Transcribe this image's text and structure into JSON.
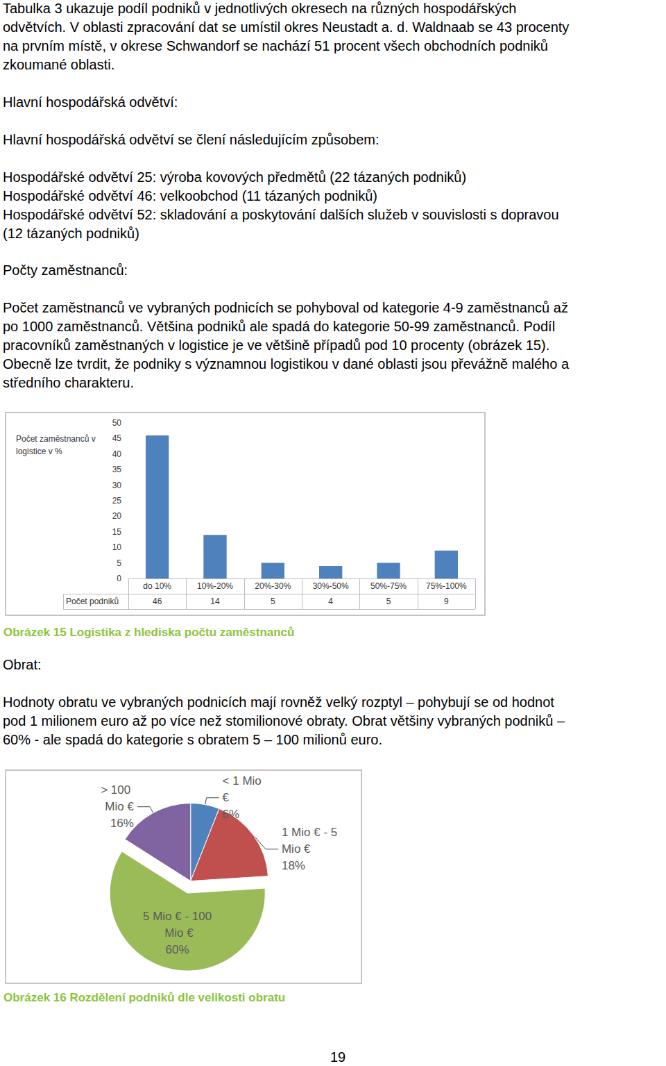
{
  "text_blocks": [
    {
      "lines": [
        "Tabulka 3 ukazuje podíl podniků v jednotlivých okresech na různých hospodářských",
        "odvětvích. V oblasti zpracování dat se umístil okres Neustadt a. d. Waldnaab se 43 procenty",
        "na prvním místě, v okrese Schwandorf se nachází 51 procent všech obchodních podniků",
        "zkoumané oblasti."
      ]
    },
    {
      "lines": [
        "Hlavní hospodářská odvětví:"
      ]
    },
    {
      "lines": [
        "Hlavní hospodářská odvětví se člení následujícím způsobem:"
      ]
    },
    {
      "lines": [
        "Hospodářské odvětví 25: výroba kovových předmětů (22 tázaných podniků)"
      ]
    },
    {
      "lines": [
        "Hospodářské odvětví 46: velkoobchod (11 tázaných podniků)"
      ]
    },
    {
      "lines": [
        "Hospodářské odvětví 52: skladování a poskytování dalších služeb v souvislosti s dopravou",
        "(12 tázaných podniků)"
      ]
    },
    {
      "lines": [
        "Počty zaměstnanců:"
      ]
    },
    {
      "lines": [
        "Počet zaměstnanců ve vybraných podnicích se pohyboval od kategorie 4-9 zaměstnanců až",
        "po 1000 zaměstnanců. Většina podniků ale spadá do kategorie 50-99 zaměstnanců. Podíl",
        "pracovníků zaměstnaných v logistice je ve většině případů pod 10 procenty (obrázek 15).",
        "Obecně lze tvrdit, že podniky s významnou logistikou v dané oblasti jsou převážně malého a",
        "středního charakteru."
      ]
    },
    {
      "lines": [
        "Obrat:"
      ]
    },
    {
      "lines": [
        "Hodnoty obratu ve vybraných podnicích mají rovněž velký rozptyl – pohybují se od hodnot",
        "pod 1 milionem euro až po více než stomilionové obraty.  Obrat většiny vybraných podniků –",
        "60% - ale spadá do kategorie s obratem 5 – 100 milionů euro."
      ]
    }
  ],
  "chart_data": [
    {
      "type": "bar",
      "x_label": "Počet zaměstnanců v logistice v %",
      "categories": [
        "do 10%",
        "10%-20%",
        "20%-30%",
        "30%-50%",
        "50%-75%",
        "75%-100%"
      ],
      "values": [
        46,
        14,
        5,
        4,
        5,
        9
      ],
      "table_label": "Počet podniků",
      "color": "#4f81bd",
      "ylim": [
        0,
        50
      ],
      "yticks": [
        0,
        5,
        10,
        15,
        20,
        25,
        30,
        35,
        40,
        45,
        50
      ],
      "grid": false,
      "caption": "Obrázek 15 Logistika z hlediska počtu zaměstnanců"
    },
    {
      "type": "pie",
      "categories": [
        "< 1 Mio €",
        "1 Mio € - 5 Mio €",
        "5 Mio € - 100 Mio €",
        "> 100 Mio €"
      ],
      "values": [
        6,
        18,
        60,
        16
      ],
      "value_labels": [
        "6%",
        "18%",
        "60%",
        "16%"
      ],
      "colors": [
        "#4f81bd",
        "#c0504d",
        "#9bbb59",
        "#8064a2"
      ],
      "data_labels": true,
      "caption": "Obrázek 16 Rozdělení podniků dle velikosti obratu"
    }
  ],
  "page_number": "19"
}
